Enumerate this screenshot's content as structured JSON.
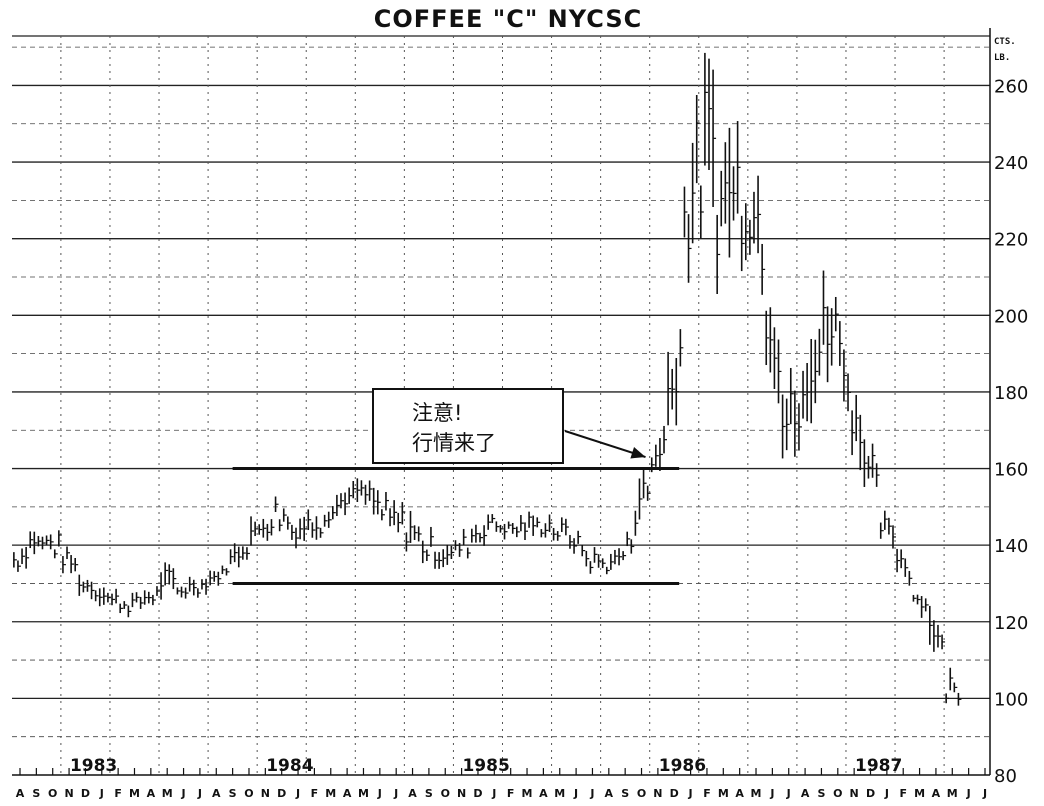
{
  "chart_data": {
    "type": "bar",
    "subtype": "high-low price bars",
    "title": "COFFEE \"C\"  NYCSC",
    "ylabel": "CTS.\nLB.",
    "xlabel": "",
    "ylim": [
      80,
      275
    ],
    "yticks": [
      80,
      100,
      120,
      140,
      160,
      180,
      200,
      220,
      240,
      260
    ],
    "grid": {
      "major_y": true,
      "minor_y_dashed": true,
      "quarterly_x_dotted": true
    },
    "x_months": [
      "A",
      "S",
      "O",
      "N",
      "D",
      "J",
      "F",
      "M",
      "A",
      "M",
      "J",
      "J",
      "A",
      "S",
      "O",
      "N",
      "D",
      "J",
      "F",
      "M",
      "A",
      "M",
      "J",
      "J",
      "A",
      "S",
      "O",
      "N",
      "D",
      "J",
      "F",
      "M",
      "A",
      "M",
      "J",
      "J",
      "A",
      "S",
      "O",
      "N",
      "D",
      "J",
      "F",
      "M",
      "A",
      "M",
      "J",
      "J",
      "A",
      "S",
      "O",
      "N",
      "D",
      "J",
      "F",
      "M",
      "A",
      "M",
      "J",
      "J"
    ],
    "x_start": "1982-08",
    "year_labels": [
      {
        "label": "1983",
        "month_index": 5
      },
      {
        "label": "1984",
        "month_index": 17
      },
      {
        "label": "1985",
        "month_index": 29
      },
      {
        "label": "1986",
        "month_index": 41
      },
      {
        "label": "1987",
        "month_index": 53
      }
    ],
    "monthly_low_high": [
      [
        132,
        140
      ],
      [
        136,
        146
      ],
      [
        137,
        145
      ],
      [
        132,
        142
      ],
      [
        126,
        134
      ],
      [
        124,
        131
      ],
      [
        122,
        129
      ],
      [
        121,
        128
      ],
      [
        123,
        129
      ],
      [
        124,
        136
      ],
      [
        125,
        132
      ],
      [
        126,
        132
      ],
      [
        128,
        134
      ],
      [
        132,
        138
      ],
      [
        135,
        148
      ],
      [
        140,
        150
      ],
      [
        143,
        156
      ],
      [
        139,
        148
      ],
      [
        140,
        150
      ],
      [
        144,
        152
      ],
      [
        147,
        156
      ],
      [
        149,
        158
      ],
      [
        145,
        155
      ],
      [
        141,
        152
      ],
      [
        138,
        150
      ],
      [
        134,
        146
      ],
      [
        133,
        141
      ],
      [
        135,
        143
      ],
      [
        138,
        148
      ],
      [
        142,
        150
      ],
      [
        141,
        148
      ],
      [
        140,
        149
      ],
      [
        142,
        148
      ],
      [
        140,
        148
      ],
      [
        138,
        145
      ],
      [
        132,
        140
      ],
      [
        132,
        138
      ],
      [
        133,
        140
      ],
      [
        142,
        158
      ],
      [
        156,
        168
      ],
      [
        160,
        195
      ],
      [
        205,
        250
      ],
      [
        215,
        270
      ],
      [
        205,
        258
      ],
      [
        210,
        255
      ],
      [
        215,
        240
      ],
      [
        185,
        230
      ],
      [
        158,
        185
      ],
      [
        156,
        190
      ],
      [
        175,
        210
      ],
      [
        185,
        218
      ],
      [
        165,
        190
      ],
      [
        150,
        172
      ],
      [
        140,
        150
      ],
      [
        132,
        142
      ],
      [
        124,
        130
      ],
      [
        112,
        127
      ],
      [
        98,
        108
      ]
    ],
    "support_resistance_lines": [
      {
        "value": 160,
        "from_month": 13,
        "to_month": 40
      },
      {
        "value": 130,
        "from_month": 13,
        "to_month": 40
      }
    ],
    "annotation": {
      "line1": "注意!",
      "line2": "行情来了",
      "arrow_to_month": 38,
      "arrow_to_value": 163
    }
  }
}
